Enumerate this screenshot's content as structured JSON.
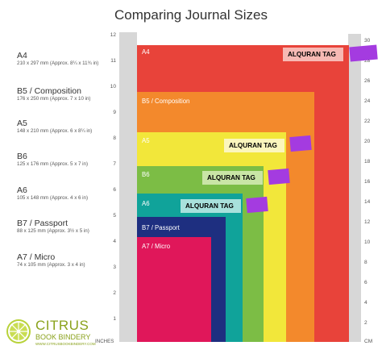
{
  "title": "Comparing Journal Sizes",
  "sizes": [
    {
      "name": "A4",
      "dims": "210 x 297 mm (Approx. 8¼ x 11¾ in)",
      "color": "#e8433a",
      "label": "A4"
    },
    {
      "name": "B5 / Composition",
      "dims": "176 x 250 mm (Approx. 7 x 10 in)",
      "color": "#f3892c",
      "label": "B5 / Composition"
    },
    {
      "name": "A5",
      "dims": "148 x 210 mm (Approx. 6 x 8¼ in)",
      "color": "#f2e73a",
      "label": "A5"
    },
    {
      "name": "B6",
      "dims": "125 x 176 mm (Approx. 5 x 7 in)",
      "color": "#7cbd45",
      "label": "B6"
    },
    {
      "name": "A6",
      "dims": "105 x 148 mm (Approx. 4 x 6 in)",
      "color": "#10a39a",
      "label": "A6"
    },
    {
      "name": "B7 / Passport",
      "dims": "88 x 125 mm (Approx. 3½ x 5 in)",
      "color": "#1e2f80",
      "label": "B7 / Passport"
    },
    {
      "name": "A7 / Micro",
      "dims": "74 x 105 mm (Approx. 3 x 4 in)",
      "color": "#e0175a",
      "label": "A7 / Micro"
    }
  ],
  "tags": [
    {
      "text": "ALQURAN TAG",
      "bg": "#f7b9b4"
    },
    {
      "text": "ALQURAN TAG",
      "bg": "#fbf6bd"
    },
    {
      "text": "ALQURAN TAG",
      "bg": "#c9e5a6"
    },
    {
      "text": "ALQURAN TAG",
      "bg": "#a8e1dc"
    }
  ],
  "tab_color": "#a43be0",
  "inches_ticks": [
    "12",
    "11",
    "10",
    "9",
    "8",
    "7",
    "6",
    "5",
    "4",
    "3",
    "2",
    "1"
  ],
  "cm_ticks": [
    "30",
    "28",
    "26",
    "24",
    "22",
    "20",
    "18",
    "16",
    "14",
    "12",
    "10",
    "8",
    "6",
    "4",
    "2",
    "CM"
  ],
  "axis_left_caption": "INCHES",
  "axis_right_caption": "CM",
  "logo": {
    "name": "CITRUS",
    "sub": "BOOK BINDERY",
    "url": "WWW.CITRUSBOOKBINDERY.COM"
  }
}
